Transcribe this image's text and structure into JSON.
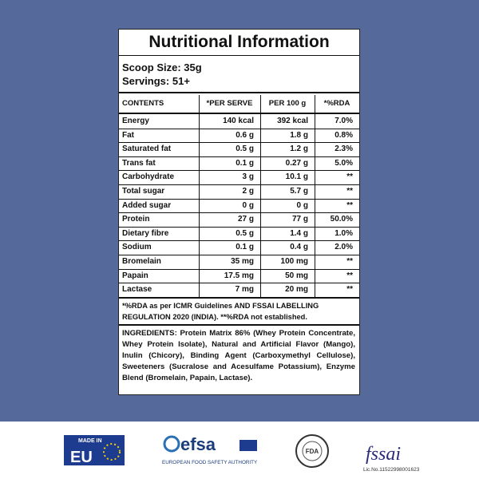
{
  "label": {
    "title": "Nutritional Information",
    "serving": [
      "Scoop Size: 35g",
      "Servings: 51+"
    ],
    "table": {
      "columns": [
        "CONTENTS",
        "*PER SERVE",
        "PER 100 g",
        "*%RDA"
      ],
      "rows": [
        [
          "Energy",
          "140 kcal",
          "392 kcal",
          "7.0%"
        ],
        [
          "Fat",
          "0.6 g",
          "1.8 g",
          "0.8%"
        ],
        [
          "Saturated fat",
          "0.5 g",
          "1.2 g",
          "2.3%"
        ],
        [
          "Trans fat",
          "0.1 g",
          "0.27 g",
          "5.0%"
        ],
        [
          "Carbohydrate",
          "3 g",
          "10.1 g",
          "**"
        ],
        [
          "Total sugar",
          "2 g",
          "5.7 g",
          "**"
        ],
        [
          "Added sugar",
          "0 g",
          "0 g",
          "**"
        ],
        [
          "Protein",
          "27 g",
          "77 g",
          "50.0%"
        ],
        [
          "Dietary fibre",
          "0.5 g",
          "1.4 g",
          "1.0%"
        ],
        [
          "Sodium",
          "0.1 g",
          "0.4 g",
          "2.0%"
        ],
        [
          "Bromelain",
          "35 mg",
          "100 mg",
          "**"
        ],
        [
          "Papain",
          "17.5 mg",
          "50 mg",
          "**"
        ],
        [
          "Lactase",
          "7 mg",
          "20 mg",
          "**"
        ]
      ]
    },
    "footnote": "*%RDA as per ICMR Guidelines AND FSSAI LABELLING REGULATION 2020 (INDIA). **%RDA not established.",
    "ingredients": "INGREDIENTS: Protein Matrix 86% (Whey Protein Concentrate, Whey Protein Isolate), Natural and Artificial Flavor (Mango), Inulin (Chicory), Binding Agent (Carboxymethyl Cellulose), Sweeteners (Sucralose and Acesulfame Potassium), Enzyme Blend (Bromelain, Papain, Lactase)."
  },
  "logos": {
    "eu": [
      "MADE IN",
      "EU"
    ],
    "efsa": [
      "efsa",
      "EUROPEAN FOOD SAFETY AUTHORITY"
    ],
    "fda": "FDA",
    "fssai": [
      "fssai",
      "Lic.No.11522998001623"
    ]
  }
}
